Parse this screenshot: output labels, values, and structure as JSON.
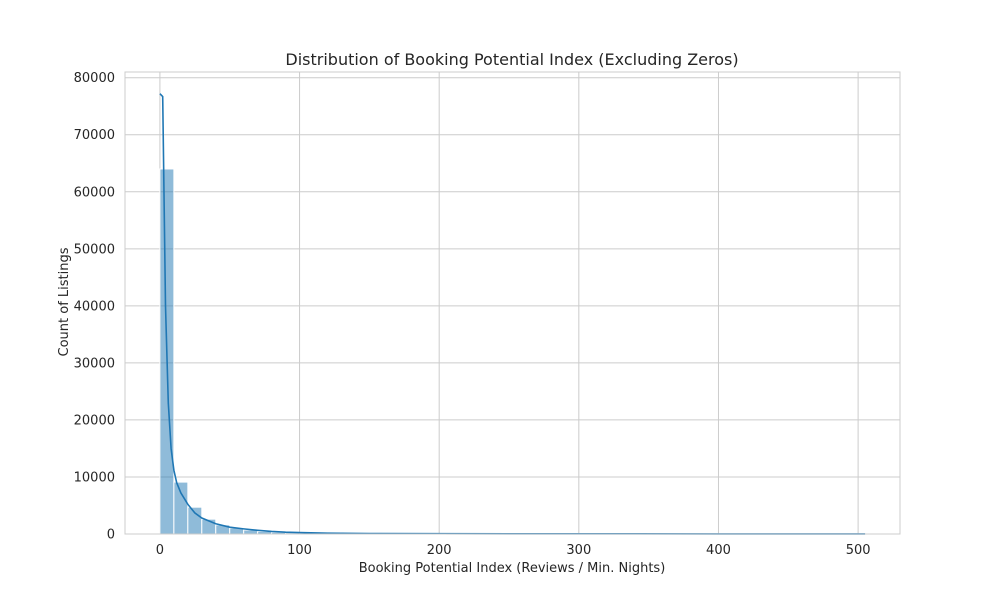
{
  "chart_data": {
    "type": "bar",
    "subtype": "histogram_with_kde",
    "title": "Distribution of Booking Potential Index (Excluding Zeros)",
    "xlabel": "Booking Potential Index (Reviews / Min. Nights)",
    "ylabel": "Count of Listings",
    "xlim": [
      -25,
      530
    ],
    "ylim": [
      0,
      81000
    ],
    "xticks": [
      0,
      100,
      200,
      300,
      400,
      500
    ],
    "yticks": [
      0,
      10000,
      20000,
      30000,
      40000,
      50000,
      60000,
      70000,
      80000
    ],
    "grid": true,
    "legend": "none",
    "bar_color": "#1f77b4",
    "bins": {
      "start": 0,
      "width": 10,
      "counts": [
        64000,
        9100,
        4700,
        2600,
        1600,
        1050,
        700,
        450,
        300,
        220,
        150,
        110,
        80,
        60,
        45,
        35,
        28,
        22,
        18,
        15,
        12,
        10,
        9,
        8,
        7,
        6,
        5,
        5,
        4,
        4,
        4,
        3,
        3,
        3,
        3,
        2,
        2,
        2,
        2,
        2,
        2,
        2,
        2,
        1,
        1,
        1,
        1,
        1,
        1,
        1,
        1
      ]
    },
    "kde": {
      "x": [
        0,
        2,
        4,
        6,
        8,
        10,
        12,
        15,
        20,
        25,
        30,
        40,
        50,
        60,
        70,
        80,
        90,
        100,
        120,
        150,
        200,
        300,
        400,
        505
      ],
      "y": [
        77200,
        76700,
        40000,
        23000,
        15000,
        11200,
        9000,
        7200,
        5200,
        3700,
        2800,
        1800,
        1200,
        900,
        650,
        450,
        320,
        250,
        150,
        80,
        50,
        30,
        20,
        10
      ]
    }
  }
}
